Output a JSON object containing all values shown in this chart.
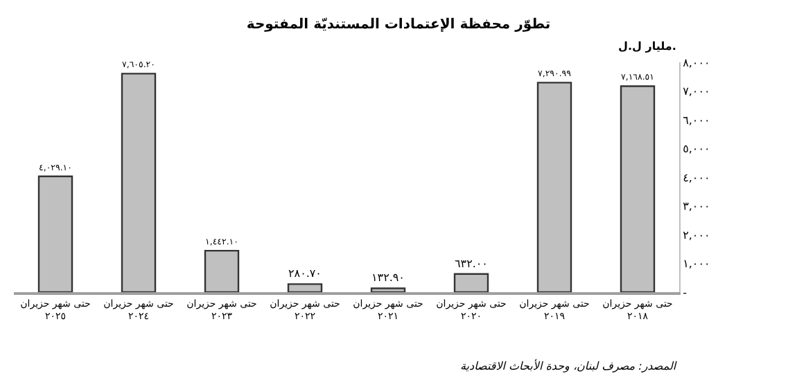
{
  "chart_data": {
    "type": "bar",
    "title": "تطوّر محفظة الإعتمادات المستنديّة المفتوحة",
    "ylabel": "مليار ل.ل.",
    "categories": [
      "حتى شهر حزيران\n٢٠٢٥",
      "حتى شهر حزيران\n٢٠٢٤",
      "حتى شهر حزيران\n٢٠٢٣",
      "حتى شهر حزيران\n٢٠٢٢",
      "حتى شهر حزيران\n٢٠٢١",
      "حتى شهر حزيران\n٢٠٢٠",
      "حتى شهر حزيران\n٢٠١٩",
      "حتى شهر حزيران\n٢٠١٨"
    ],
    "values": [
      4029.1,
      7605.2,
      1442.1,
      280.7,
      132.9,
      632.0,
      7290.99,
      7168.51
    ],
    "value_labels": [
      "٤,٠٢٩.١٠",
      "٧,٦٠٥.٢٠",
      "١,٤٤٢.١٠",
      "٢٨٠.٧٠",
      "١٣٢.٩٠",
      "٦٣٢.٠٠",
      "٧,٢٩٠.٩٩",
      "٧,١٦٨.٥١"
    ],
    "color": "#c0c0c0",
    "ylim": [
      0,
      8000
    ],
    "yticks": [
      {
        "value": 0,
        "label": "-"
      },
      {
        "value": 1000,
        "label": "١,٠٠٠"
      },
      {
        "value": 2000,
        "label": "٢,٠٠٠"
      },
      {
        "value": 3000,
        "label": "٣,٠٠٠"
      },
      {
        "value": 4000,
        "label": "٤,٠٠٠"
      },
      {
        "value": 5000,
        "label": "٥,٠٠٠"
      },
      {
        "value": 6000,
        "label": "٦,٠٠٠"
      },
      {
        "value": 7000,
        "label": "٧,٠٠٠"
      },
      {
        "value": 8000,
        "label": "٨,٠٠٠"
      }
    ],
    "annotations": [
      "المصدر: مصرف لبنان، وحدة الأبحاث الاقتصادية"
    ]
  }
}
